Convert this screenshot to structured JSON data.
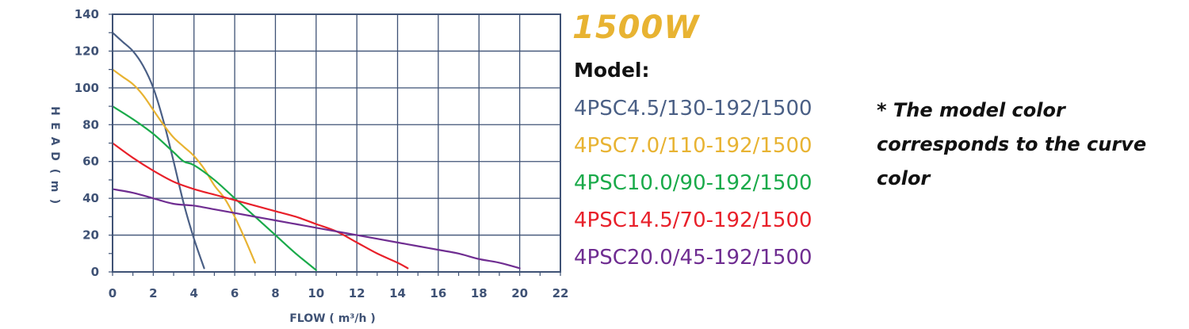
{
  "chart_data": {
    "type": "line",
    "title": "1500W",
    "xlabel": "FLOW ( m³/h )",
    "ylabel": "HEAD ( m )",
    "xlim": [
      0,
      22
    ],
    "ylim": [
      0,
      140
    ],
    "xticks": [
      0,
      2,
      4,
      6,
      8,
      10,
      12,
      14,
      16,
      18,
      20,
      22
    ],
    "yticks": [
      0,
      20,
      40,
      60,
      80,
      100,
      120,
      140
    ],
    "grid": true,
    "legend_title": "Model:",
    "legend_position": "right",
    "series": [
      {
        "name": "4PSC4.5/130-192/1500",
        "color": "#4a5f85",
        "x": [
          0,
          0.5,
          1,
          1.5,
          2,
          2.5,
          3,
          3.5,
          4,
          4.5
        ],
        "y": [
          130,
          125,
          120,
          112,
          100,
          82,
          60,
          37,
          18,
          2
        ]
      },
      {
        "name": "4PSC7.0/110-192/1500",
        "color": "#e8b332",
        "x": [
          0,
          0.5,
          1,
          1.5,
          2,
          2.5,
          3,
          3.5,
          4,
          4.5,
          5,
          5.5,
          6,
          6.5,
          7
        ],
        "y": [
          110,
          106,
          102,
          96,
          88,
          80,
          73,
          68,
          63,
          56,
          47,
          40,
          30,
          18,
          5
        ]
      },
      {
        "name": "4PSC10.0/90-192/1500",
        "color": "#1aaa4a",
        "x": [
          0,
          1,
          2,
          3,
          3.5,
          4,
          5,
          6,
          7,
          8,
          9,
          10
        ],
        "y": [
          90,
          83,
          75,
          65,
          60,
          58,
          50,
          40,
          30,
          20,
          10,
          1
        ]
      },
      {
        "name": "4PSC14.5/70-192/1500",
        "color": "#e8202a",
        "x": [
          0,
          1,
          2,
          3,
          4,
          5,
          6,
          7,
          8,
          9,
          10,
          11,
          12,
          13,
          14,
          14.5
        ],
        "y": [
          70,
          62,
          55,
          49,
          45,
          42,
          39,
          36,
          33,
          30,
          26,
          22,
          16,
          10,
          5,
          2
        ]
      },
      {
        "name": "4PSC20.0/45-192/1500",
        "color": "#6f2d91",
        "x": [
          0,
          1,
          2,
          3,
          4,
          5,
          6,
          7,
          8,
          9,
          10,
          11,
          12,
          13,
          14,
          15,
          16,
          17,
          18,
          19,
          20
        ],
        "y": [
          45,
          43,
          40,
          37,
          36,
          34,
          32,
          30,
          28,
          26,
          24,
          22,
          20,
          18,
          16,
          14,
          12,
          10,
          7,
          5,
          2
        ]
      }
    ],
    "note": "* The model color corresponds to the curve color"
  }
}
